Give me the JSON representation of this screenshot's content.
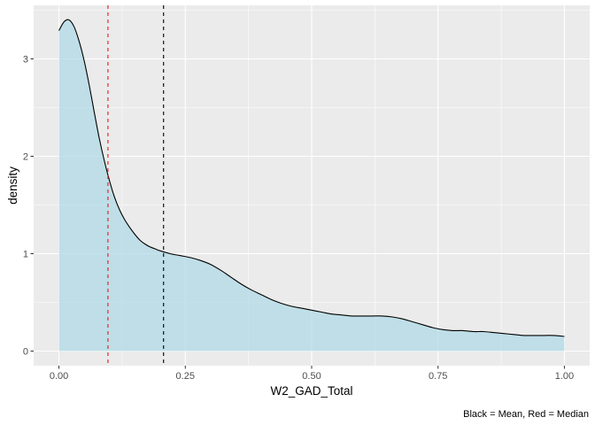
{
  "chart_data": {
    "type": "area",
    "xlabel": "W2_GAD_Total",
    "ylabel": "density",
    "caption": "Black = Mean, Red = Median",
    "xlim": [
      -0.05,
      1.05
    ],
    "ylim": [
      -0.15,
      3.55
    ],
    "x_ticks": [
      0.0,
      0.25,
      0.5,
      0.75,
      1.0
    ],
    "x_tick_labels": [
      "0.00",
      "0.25",
      "0.50",
      "0.75",
      "1.00"
    ],
    "y_ticks": [
      0,
      1,
      2,
      3
    ],
    "y_tick_labels": [
      "0",
      "1",
      "2",
      "3"
    ],
    "grid": true,
    "fill_color": "#add8e6",
    "line_color": "#000000",
    "panel_background": "#ebebeb",
    "grid_color": "#ffffff",
    "density": {
      "x": [
        0.0,
        0.01,
        0.02,
        0.03,
        0.04,
        0.05,
        0.06,
        0.07,
        0.08,
        0.09,
        0.1,
        0.11,
        0.12,
        0.13,
        0.14,
        0.15,
        0.16,
        0.17,
        0.18,
        0.19,
        0.2,
        0.22,
        0.24,
        0.26,
        0.28,
        0.3,
        0.32,
        0.34,
        0.36,
        0.38,
        0.4,
        0.42,
        0.44,
        0.46,
        0.48,
        0.5,
        0.52,
        0.54,
        0.56,
        0.58,
        0.6,
        0.62,
        0.64,
        0.66,
        0.68,
        0.7,
        0.72,
        0.74,
        0.76,
        0.78,
        0.8,
        0.82,
        0.84,
        0.86,
        0.88,
        0.9,
        0.92,
        0.94,
        0.96,
        0.98,
        1.0
      ],
      "y": [
        3.29,
        3.38,
        3.4,
        3.33,
        3.18,
        2.98,
        2.73,
        2.45,
        2.18,
        1.95,
        1.75,
        1.58,
        1.45,
        1.35,
        1.27,
        1.2,
        1.14,
        1.1,
        1.07,
        1.05,
        1.03,
        1.0,
        0.98,
        0.96,
        0.93,
        0.89,
        0.83,
        0.76,
        0.69,
        0.63,
        0.58,
        0.53,
        0.49,
        0.46,
        0.44,
        0.42,
        0.4,
        0.38,
        0.37,
        0.36,
        0.36,
        0.36,
        0.36,
        0.35,
        0.33,
        0.3,
        0.27,
        0.24,
        0.22,
        0.21,
        0.21,
        0.2,
        0.2,
        0.19,
        0.18,
        0.17,
        0.16,
        0.16,
        0.16,
        0.16,
        0.15
      ]
    },
    "vlines": [
      {
        "name": "Median",
        "x": 0.097,
        "color": "#e41a1c",
        "dash": "dashed"
      },
      {
        "name": "Mean",
        "x": 0.207,
        "color": "#000000",
        "dash": "dashed"
      }
    ]
  }
}
